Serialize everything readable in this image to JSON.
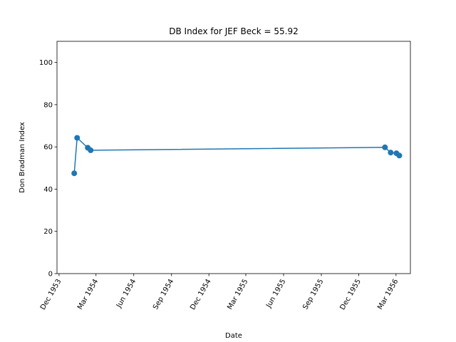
{
  "chart_data": {
    "type": "line",
    "title": "DB Index for JEF Beck = 55.92",
    "xlabel": "Date",
    "ylabel": "Don Bradman Index",
    "ylim": [
      0,
      110
    ],
    "yticks": [
      0,
      20,
      40,
      60,
      80,
      100
    ],
    "xlim": [
      "1953-11-26",
      "1956-04-05"
    ],
    "xticks": [
      {
        "date": "1953-12-01",
        "label": "Dec 1953"
      },
      {
        "date": "1954-03-01",
        "label": "Mar 1954"
      },
      {
        "date": "1954-06-01",
        "label": "Jun 1954"
      },
      {
        "date": "1954-09-01",
        "label": "Sep 1954"
      },
      {
        "date": "1954-12-01",
        "label": "Dec 1954"
      },
      {
        "date": "1955-03-01",
        "label": "Mar 1955"
      },
      {
        "date": "1955-06-01",
        "label": "Jun 1955"
      },
      {
        "date": "1955-09-01",
        "label": "Sep 1955"
      },
      {
        "date": "1955-12-01",
        "label": "Dec 1955"
      },
      {
        "date": "1956-03-01",
        "label": "Mar 1956"
      }
    ],
    "series": [
      {
        "color": "#1f77b4",
        "marker": "circle",
        "points": [
          {
            "x": "1954-01-07",
            "y": 47.5
          },
          {
            "x": "1954-01-14",
            "y": 64.3
          },
          {
            "x": "1954-02-09",
            "y": 59.6
          },
          {
            "x": "1954-02-16",
            "y": 58.4
          },
          {
            "x": "1956-02-03",
            "y": 59.8
          },
          {
            "x": "1956-02-17",
            "y": 57.3
          },
          {
            "x": "1956-03-02",
            "y": 57.0
          },
          {
            "x": "1956-03-09",
            "y": 55.92
          }
        ]
      }
    ],
    "grid": false,
    "legend": "none"
  }
}
